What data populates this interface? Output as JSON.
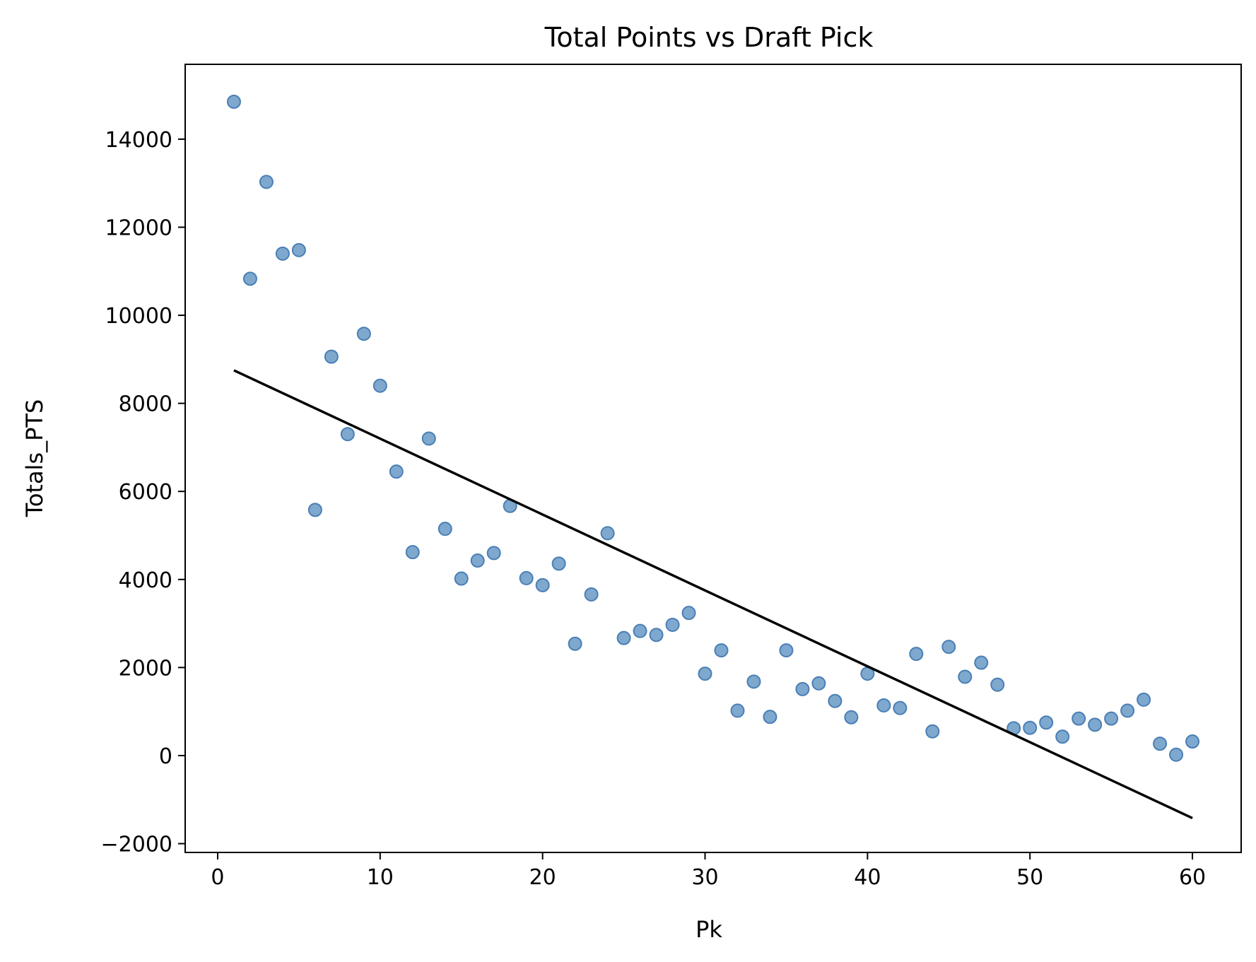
{
  "chart_data": {
    "type": "scatter",
    "title": "Total Points vs Draft Pick",
    "xlabel": "Pk",
    "ylabel": "Totals_PTS",
    "xlim": [
      -2,
      63
    ],
    "ylim": [
      -2200,
      15700
    ],
    "xticks": [
      0,
      10,
      20,
      30,
      40,
      50,
      60
    ],
    "yticks": [
      -2000,
      0,
      2000,
      4000,
      6000,
      8000,
      10000,
      12000,
      14000
    ],
    "ytick_labels": [
      "−2000",
      "0",
      "2000",
      "4000",
      "6000",
      "8000",
      "10000",
      "12000",
      "14000"
    ],
    "grid": false,
    "point_color": "#5b8fc0",
    "line_color": "#000000",
    "points": [
      {
        "x": 1,
        "y": 14850
      },
      {
        "x": 2,
        "y": 10830
      },
      {
        "x": 3,
        "y": 13030
      },
      {
        "x": 4,
        "y": 11400
      },
      {
        "x": 5,
        "y": 11480
      },
      {
        "x": 6,
        "y": 5580
      },
      {
        "x": 7,
        "y": 9060
      },
      {
        "x": 8,
        "y": 7300
      },
      {
        "x": 9,
        "y": 9580
      },
      {
        "x": 10,
        "y": 8400
      },
      {
        "x": 11,
        "y": 6450
      },
      {
        "x": 12,
        "y": 4620
      },
      {
        "x": 13,
        "y": 7200
      },
      {
        "x": 14,
        "y": 5150
      },
      {
        "x": 15,
        "y": 4020
      },
      {
        "x": 16,
        "y": 4430
      },
      {
        "x": 17,
        "y": 4600
      },
      {
        "x": 18,
        "y": 5670
      },
      {
        "x": 19,
        "y": 4030
      },
      {
        "x": 20,
        "y": 3870
      },
      {
        "x": 21,
        "y": 4360
      },
      {
        "x": 22,
        "y": 2540
      },
      {
        "x": 23,
        "y": 3660
      },
      {
        "x": 24,
        "y": 5050
      },
      {
        "x": 25,
        "y": 2670
      },
      {
        "x": 26,
        "y": 2830
      },
      {
        "x": 27,
        "y": 2740
      },
      {
        "x": 28,
        "y": 2970
      },
      {
        "x": 29,
        "y": 3240
      },
      {
        "x": 30,
        "y": 1860
      },
      {
        "x": 31,
        "y": 2390
      },
      {
        "x": 32,
        "y": 1020
      },
      {
        "x": 33,
        "y": 1680
      },
      {
        "x": 34,
        "y": 880
      },
      {
        "x": 35,
        "y": 2390
      },
      {
        "x": 36,
        "y": 1510
      },
      {
        "x": 37,
        "y": 1640
      },
      {
        "x": 38,
        "y": 1240
      },
      {
        "x": 39,
        "y": 870
      },
      {
        "x": 40,
        "y": 1860
      },
      {
        "x": 41,
        "y": 1140
      },
      {
        "x": 42,
        "y": 1080
      },
      {
        "x": 43,
        "y": 2310
      },
      {
        "x": 44,
        "y": 550
      },
      {
        "x": 45,
        "y": 2470
      },
      {
        "x": 46,
        "y": 1790
      },
      {
        "x": 47,
        "y": 2110
      },
      {
        "x": 48,
        "y": 1610
      },
      {
        "x": 49,
        "y": 620
      },
      {
        "x": 50,
        "y": 630
      },
      {
        "x": 51,
        "y": 750
      },
      {
        "x": 52,
        "y": 430
      },
      {
        "x": 53,
        "y": 840
      },
      {
        "x": 54,
        "y": 700
      },
      {
        "x": 55,
        "y": 840
      },
      {
        "x": 56,
        "y": 1020
      },
      {
        "x": 57,
        "y": 1270
      },
      {
        "x": 58,
        "y": 270
      },
      {
        "x": 59,
        "y": 20
      },
      {
        "x": 60,
        "y": 320
      }
    ],
    "trendline": [
      {
        "x": 1,
        "y": 8750
      },
      {
        "x": 60,
        "y": -1420
      }
    ]
  }
}
